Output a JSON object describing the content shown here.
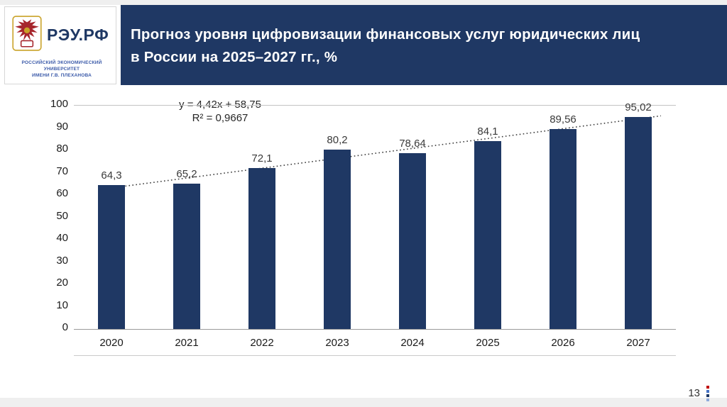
{
  "slide": {
    "title_line1": "Прогноз уровня цифровизации финансовых услуг юридических лиц",
    "title_line2": "в России на 2025–2027 гг., %",
    "page_number": "13"
  },
  "logo": {
    "brand": "РЭУ.РФ",
    "subtitle_line1": "РОССИЙСКИЙ ЭКОНОМИЧЕСКИЙ УНИВЕРСИТЕТ",
    "subtitle_line2": "ИМЕНИ Г.В. ПЛЕХАНОВА"
  },
  "colors": {
    "header_bg": "#1F3864",
    "bar": "#1F3864",
    "accent_red": "#C00000",
    "marker_squares": [
      "#C00000",
      "#4472C4",
      "#1F3864",
      "#8FAADC"
    ]
  },
  "chart_data": {
    "type": "bar",
    "title": "Прогноз уровня цифровизации финансовых услуг юридических лиц в России на 2025–2027 гг., %",
    "categories": [
      "2020",
      "2021",
      "2022",
      "2023",
      "2024",
      "2025",
      "2026",
      "2027"
    ],
    "values": [
      64.3,
      65.2,
      72.1,
      80.2,
      78.64,
      84.1,
      89.56,
      95.02
    ],
    "value_labels": [
      "64,3",
      "65,2",
      "72,1",
      "80,2",
      "78,64",
      "84,1",
      "89,56",
      "95,02"
    ],
    "xlabel": "",
    "ylabel": "",
    "ylim": [
      0,
      100
    ],
    "yticks": [
      "0",
      "10",
      "20",
      "30",
      "40",
      "50",
      "60",
      "70",
      "80",
      "90",
      "100"
    ],
    "grid": "off",
    "legend": "none",
    "trendline": {
      "equation": "y = 4,42x + 58,75",
      "r_squared": "R² = 0,9667",
      "slope": 4.42,
      "intercept": 58.75,
      "style": "dotted"
    }
  }
}
